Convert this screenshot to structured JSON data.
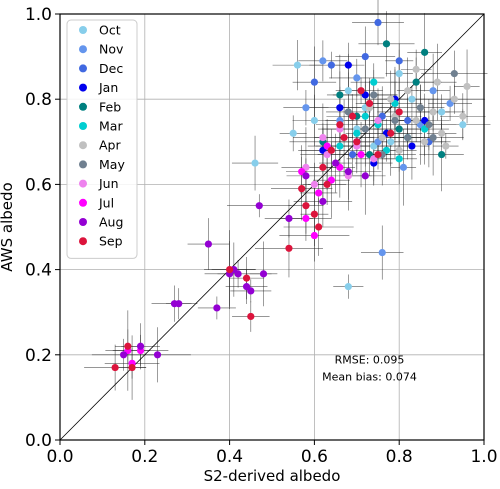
{
  "chart_data": {
    "type": "scatter",
    "xlabel": "S2-derived albedo",
    "ylabel": "AWS albedo",
    "xlim": [
      0.0,
      1.0
    ],
    "ylim": [
      0.0,
      1.0
    ],
    "xticks": [
      "0.0",
      "0.2",
      "0.4",
      "0.6",
      "0.8",
      "1.0"
    ],
    "yticks": [
      "0.0",
      "0.2",
      "0.4",
      "0.6",
      "0.8",
      "1.0"
    ],
    "grid": true,
    "reference_line": "1:1",
    "error_bars": true,
    "legend_position": "upper-left",
    "annotations": [
      "RMSE: 0.095",
      "Mean bias: 0.074"
    ],
    "series": [
      {
        "name": "Oct",
        "color": "#87ceeb",
        "points": [
          [
            0.46,
            0.65
          ],
          [
            0.55,
            0.72
          ],
          [
            0.6,
            0.75
          ],
          [
            0.68,
            0.82
          ],
          [
            0.72,
            0.78
          ],
          [
            0.78,
            0.7
          ],
          [
            0.83,
            0.8
          ],
          [
            0.9,
            0.77
          ],
          [
            0.95,
            0.74
          ],
          [
            0.56,
            0.88
          ],
          [
            0.68,
            0.36
          ],
          [
            0.74,
            0.69
          ],
          [
            0.8,
            0.86
          ],
          [
            0.7,
            0.73
          ]
        ]
      },
      {
        "name": "Nov",
        "color": "#6495ed",
        "points": [
          [
            0.76,
            0.44
          ],
          [
            0.7,
            0.85
          ],
          [
            0.85,
            0.74
          ],
          [
            0.92,
            0.79
          ],
          [
            0.62,
            0.89
          ],
          [
            0.66,
            0.75
          ],
          [
            0.75,
            0.7
          ],
          [
            0.81,
            0.64
          ],
          [
            0.88,
            0.82
          ],
          [
            0.58,
            0.78
          ]
        ]
      },
      {
        "name": "Dec",
        "color": "#4169e1",
        "points": [
          [
            0.75,
            0.98
          ],
          [
            0.72,
            0.9
          ],
          [
            0.8,
            0.89
          ],
          [
            0.64,
            0.88
          ],
          [
            0.82,
            0.75
          ],
          [
            0.76,
            0.76
          ],
          [
            0.69,
            0.67
          ],
          [
            0.87,
            0.7
          ],
          [
            0.6,
            0.84
          ]
        ]
      },
      {
        "name": "Jan",
        "color": "#0000ee",
        "points": [
          [
            0.62,
            0.68
          ],
          [
            0.7,
            0.7
          ],
          [
            0.77,
            0.72
          ],
          [
            0.83,
            0.69
          ],
          [
            0.72,
            0.81
          ],
          [
            0.66,
            0.78
          ],
          [
            0.79,
            0.8
          ],
          [
            0.86,
            0.75
          ],
          [
            0.74,
            0.65
          ],
          [
            0.68,
            0.88
          ]
        ]
      },
      {
        "name": "Feb",
        "color": "#008080",
        "points": [
          [
            0.77,
            0.93
          ],
          [
            0.86,
            0.91
          ],
          [
            0.73,
            0.67
          ],
          [
            0.8,
            0.73
          ],
          [
            0.66,
            0.81
          ],
          [
            0.9,
            0.67
          ],
          [
            0.84,
            0.84
          ],
          [
            0.7,
            0.76
          ],
          [
            0.62,
            0.7
          ]
        ]
      },
      {
        "name": "Mar",
        "color": "#00ced1",
        "points": [
          [
            0.7,
            0.72
          ],
          [
            0.75,
            0.74
          ],
          [
            0.79,
            0.79
          ],
          [
            0.72,
            0.76
          ],
          [
            0.82,
            0.71
          ],
          [
            0.77,
            0.68
          ],
          [
            0.86,
            0.73
          ],
          [
            0.66,
            0.69
          ],
          [
            0.74,
            0.84
          ],
          [
            0.8,
            0.66
          ]
        ]
      },
      {
        "name": "Apr",
        "color": "#c0c0c0",
        "points": [
          [
            0.84,
            0.75
          ],
          [
            0.88,
            0.77
          ],
          [
            0.93,
            0.8
          ],
          [
            0.9,
            0.72
          ],
          [
            0.79,
            0.76
          ],
          [
            0.86,
            0.7
          ],
          [
            0.95,
            0.76
          ],
          [
            0.82,
            0.82
          ],
          [
            0.76,
            0.71
          ],
          [
            0.89,
            0.84
          ],
          [
            0.73,
            0.78
          ],
          [
            0.8,
            0.68
          ],
          [
            0.96,
            0.83
          ],
          [
            0.91,
            0.69
          ],
          [
            0.84,
            0.87
          ],
          [
            0.78,
            0.8
          ]
        ]
      },
      {
        "name": "May",
        "color": "#708090",
        "points": [
          [
            0.82,
            0.71
          ],
          [
            0.79,
            0.75
          ],
          [
            0.85,
            0.78
          ],
          [
            0.72,
            0.73
          ],
          [
            0.87,
            0.74
          ],
          [
            0.76,
            0.67
          ],
          [
            0.68,
            0.77
          ],
          [
            0.93,
            0.86
          ],
          [
            0.74,
            0.81
          ],
          [
            0.88,
            0.71
          ]
        ]
      },
      {
        "name": "Jun",
        "color": "#ee82ee",
        "points": [
          [
            0.58,
            0.64
          ],
          [
            0.63,
            0.67
          ],
          [
            0.66,
            0.73
          ],
          [
            0.7,
            0.69
          ],
          [
            0.74,
            0.66
          ],
          [
            0.62,
            0.71
          ],
          [
            0.68,
            0.62
          ],
          [
            0.75,
            0.75
          ],
          [
            0.6,
            0.6
          ]
        ]
      },
      {
        "name": "Jul",
        "color": "#ff00ff",
        "points": [
          [
            0.16,
            0.21
          ],
          [
            0.17,
            0.18
          ],
          [
            0.19,
            0.21
          ],
          [
            0.57,
            0.63
          ],
          [
            0.61,
            0.58
          ],
          [
            0.6,
            0.48
          ],
          [
            0.63,
            0.69
          ],
          [
            0.66,
            0.64
          ],
          [
            0.71,
            0.67
          ],
          [
            0.64,
            0.61
          ],
          [
            0.58,
            0.52
          ]
        ]
      },
      {
        "name": "Aug",
        "color": "#9400d3",
        "points": [
          [
            0.15,
            0.2
          ],
          [
            0.19,
            0.22
          ],
          [
            0.23,
            0.2
          ],
          [
            0.28,
            0.32
          ],
          [
            0.27,
            0.32
          ],
          [
            0.35,
            0.46
          ],
          [
            0.37,
            0.31
          ],
          [
            0.4,
            0.39
          ],
          [
            0.41,
            0.4
          ],
          [
            0.42,
            0.39
          ],
          [
            0.44,
            0.36
          ],
          [
            0.45,
            0.35
          ],
          [
            0.48,
            0.39
          ],
          [
            0.47,
            0.55
          ],
          [
            0.54,
            0.52
          ],
          [
            0.58,
            0.62
          ],
          [
            0.62,
            0.56
          ],
          [
            0.65,
            0.65
          ],
          [
            0.68,
            0.63
          ],
          [
            0.72,
            0.62
          ]
        ]
      },
      {
        "name": "Sep",
        "color": "#dc143c",
        "points": [
          [
            0.13,
            0.17
          ],
          [
            0.16,
            0.22
          ],
          [
            0.17,
            0.17
          ],
          [
            0.4,
            0.4
          ],
          [
            0.44,
            0.38
          ],
          [
            0.45,
            0.29
          ],
          [
            0.54,
            0.45
          ],
          [
            0.57,
            0.59
          ],
          [
            0.58,
            0.55
          ],
          [
            0.6,
            0.53
          ],
          [
            0.61,
            0.5
          ],
          [
            0.63,
            0.6
          ],
          [
            0.7,
            0.7
          ],
          [
            0.73,
            0.79
          ],
          [
            0.78,
            0.72
          ],
          [
            0.66,
            0.74
          ],
          [
            0.69,
            0.76
          ],
          [
            0.75,
            0.67
          ],
          [
            0.62,
            0.64
          ],
          [
            0.67,
            0.71
          ],
          [
            0.8,
            0.77
          ],
          [
            0.71,
            0.82
          ],
          [
            0.64,
            0.68
          ]
        ]
      }
    ]
  }
}
